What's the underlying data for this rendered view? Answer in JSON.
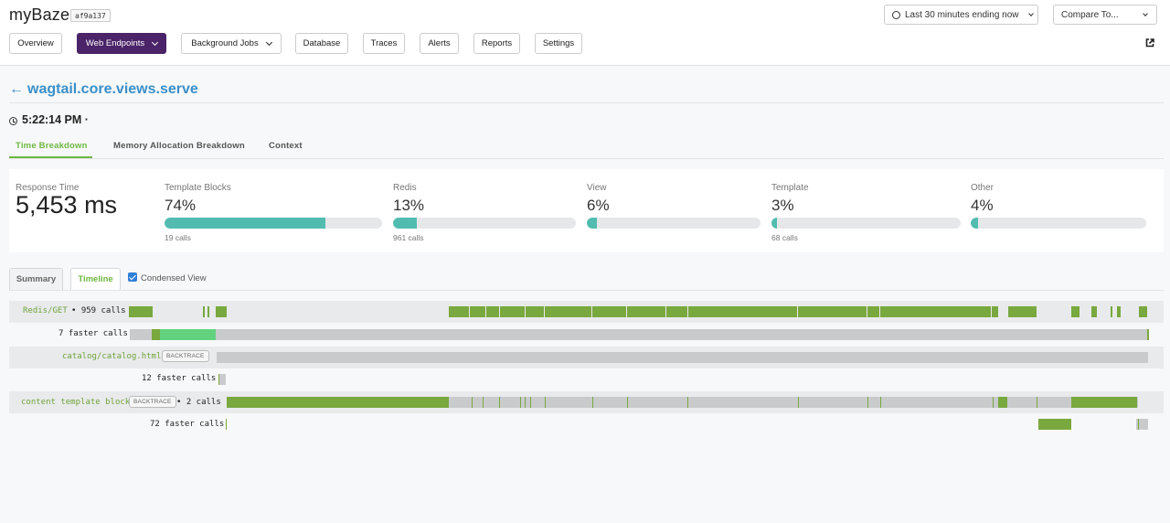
{
  "app": {
    "name": "myBaze",
    "commit": "af9a137"
  },
  "header": {
    "time_range": "Last 30 minutes ending now",
    "compare": "Compare To..."
  },
  "nav": {
    "overview": "Overview",
    "web_endpoints": "Web Endpoints",
    "background_jobs": "Background Jobs",
    "database": "Database",
    "traces": "Traces",
    "alerts": "Alerts",
    "reports": "Reports",
    "settings": "Settings"
  },
  "page": {
    "back_arrow": "←",
    "endpoint": "wagtail.core.views.serve",
    "timestamp": "5:22:14 PM ·"
  },
  "tabs": {
    "time": "Time Breakdown",
    "memory": "Memory Allocation Breakdown",
    "context": "Context"
  },
  "metrics": {
    "response": {
      "label": "Response Time",
      "value": "5,453 ms"
    },
    "template_blocks": {
      "label": "Template Blocks",
      "pct": "74%",
      "fraction": 0.74,
      "calls": "19 calls"
    },
    "redis": {
      "label": "Redis",
      "pct": "13%",
      "fraction": 0.13,
      "calls": "961 calls"
    },
    "view": {
      "label": "View",
      "pct": "6%",
      "fraction": 0.06
    },
    "template": {
      "label": "Template",
      "pct": "3%",
      "fraction": 0.03,
      "calls": "68 calls"
    },
    "other": {
      "label": "Other",
      "pct": "4%",
      "fraction": 0.04
    }
  },
  "subtabs": {
    "summary": "Summary",
    "timeline": "Timeline",
    "condensed": "Condensed View",
    "condensed_checked": true
  },
  "timeline": {
    "backtrace_label": "BACKTRACE",
    "rows": {
      "redis_name": "Redis/GET",
      "redis_calls": "• 959 calls",
      "redis_faster": "7 faster calls",
      "catalog_name": "catalog/catalog.html",
      "catalog_faster": "12 faster calls",
      "content_name": "content template block",
      "content_calls": "• 2 calls",
      "content_faster": "72 faster calls"
    }
  },
  "colors": {
    "brand_purple": "#4a2368",
    "link_blue": "#3a8fc9",
    "accent_green": "#6fb840",
    "bar_teal": "#52bcb1",
    "timeline_green": "#79a83f",
    "timeline_grey": "#c9cacc"
  },
  "icons": {
    "clock": "clock-icon",
    "external": "external-link-icon",
    "chevron": "chevron-down-icon",
    "checkbox": "checkbox-checked-icon"
  }
}
